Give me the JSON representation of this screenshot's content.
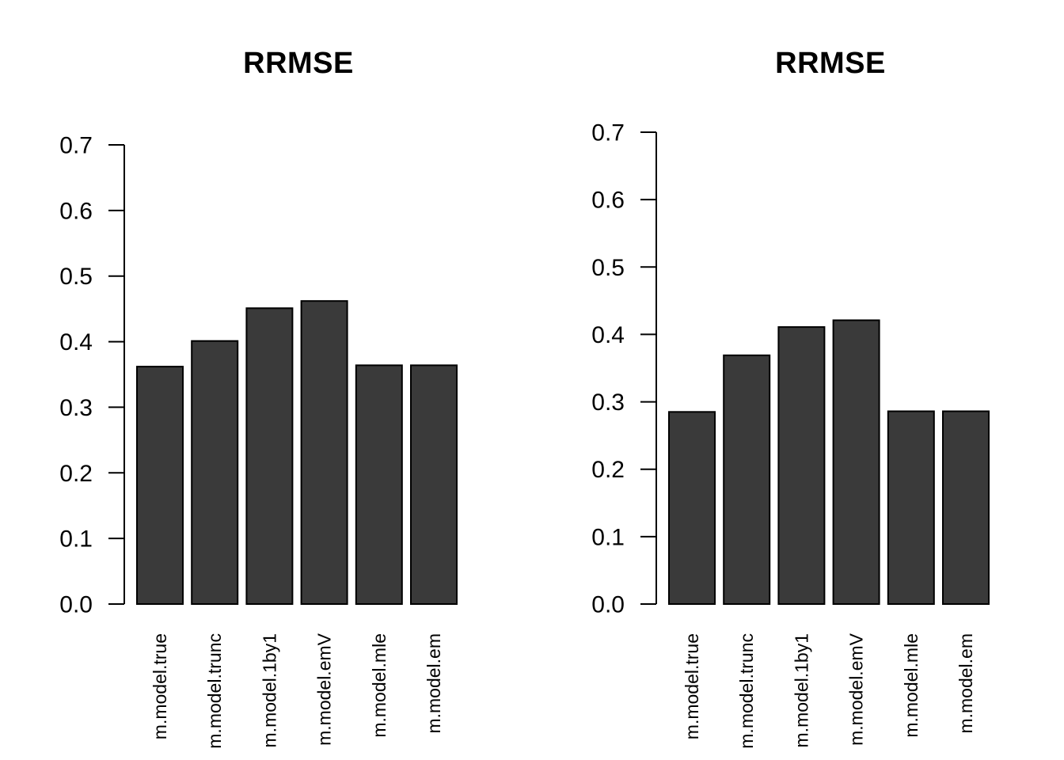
{
  "figure": {
    "background": "#ffffff",
    "text_color": "#000000",
    "axis_color": "#000000"
  },
  "chart_data": [
    {
      "type": "bar",
      "title": "RRMSE",
      "categories": [
        "m.model.true",
        "m.model.trunc",
        "m.model.1by1",
        "m.model.emV",
        "m.model.mle",
        "m.model.em"
      ],
      "values": [
        0.362,
        0.401,
        0.451,
        0.462,
        0.364,
        0.364
      ],
      "xlabel": "",
      "ylabel": "",
      "ylim": [
        0.0,
        0.7
      ],
      "yticks": [
        0.0,
        0.1,
        0.2,
        0.3,
        0.4,
        0.5,
        0.6,
        0.7
      ],
      "ytick_labels": [
        "0.0",
        "0.1",
        "0.2",
        "0.3",
        "0.4",
        "0.5",
        "0.6",
        "0.7"
      ],
      "x_label_rotation": -90,
      "grid": false,
      "legend": null,
      "bar_fill": "#3a3a3a",
      "bar_border": "#000000"
    },
    {
      "type": "bar",
      "title": "RRMSE",
      "categories": [
        "m.model.true",
        "m.model.trunc",
        "m.model.1by1",
        "m.model.emV",
        "m.model.mle",
        "m.model.em"
      ],
      "values": [
        0.285,
        0.369,
        0.411,
        0.421,
        0.286,
        0.286
      ],
      "xlabel": "",
      "ylabel": "",
      "ylim": [
        0.0,
        0.7
      ],
      "yticks": [
        0.0,
        0.1,
        0.2,
        0.3,
        0.4,
        0.5,
        0.6,
        0.7
      ],
      "ytick_labels": [
        "0.0",
        "0.1",
        "0.2",
        "0.3",
        "0.4",
        "0.5",
        "0.6",
        "0.7"
      ],
      "x_label_rotation": -90,
      "grid": false,
      "legend": null,
      "bar_fill": "#3a3a3a",
      "bar_border": "#000000"
    }
  ]
}
